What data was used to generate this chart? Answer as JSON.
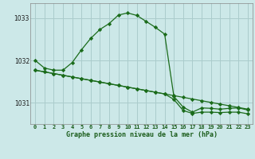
{
  "title": "Graphe pression niveau de la mer (hPa)",
  "background_color": "#cce8e8",
  "grid_color": "#aacccc",
  "line_color": "#1a6b1a",
  "marker_color": "#1a6b1a",
  "hours": [
    0,
    1,
    2,
    3,
    4,
    5,
    6,
    7,
    8,
    9,
    10,
    11,
    12,
    13,
    14,
    15,
    16,
    17,
    18,
    19,
    20,
    21,
    22,
    23
  ],
  "series1": [
    1032.0,
    1031.82,
    1031.77,
    1031.77,
    1031.95,
    1032.25,
    1032.52,
    1032.73,
    1032.87,
    1033.07,
    1033.12,
    1033.06,
    1032.92,
    1032.78,
    1032.62,
    1031.15,
    1030.9,
    1030.78,
    1030.88,
    1030.87,
    1030.85,
    1030.87,
    1030.88,
    1030.83
  ],
  "series2": [
    1031.77,
    1031.73,
    1031.69,
    1031.65,
    1031.61,
    1031.57,
    1031.53,
    1031.49,
    1031.45,
    1031.41,
    1031.37,
    1031.33,
    1031.29,
    1031.25,
    1031.21,
    1031.17,
    1031.13,
    1031.09,
    1031.05,
    1031.01,
    1030.97,
    1030.93,
    1030.89,
    1030.85
  ],
  "series3": [
    1031.77,
    1031.73,
    1031.69,
    1031.65,
    1031.61,
    1031.57,
    1031.53,
    1031.49,
    1031.45,
    1031.41,
    1031.37,
    1031.33,
    1031.29,
    1031.25,
    1031.21,
    1031.08,
    1030.82,
    1030.75,
    1030.78,
    1030.78,
    1030.77,
    1030.78,
    1030.78,
    1030.74
  ],
  "ylim": [
    1030.5,
    1033.35
  ],
  "yticks": [
    1031,
    1032,
    1033
  ],
  "xticks": [
    0,
    1,
    2,
    3,
    4,
    5,
    6,
    7,
    8,
    9,
    10,
    11,
    12,
    13,
    14,
    15,
    16,
    17,
    18,
    19,
    20,
    21,
    22,
    23
  ]
}
